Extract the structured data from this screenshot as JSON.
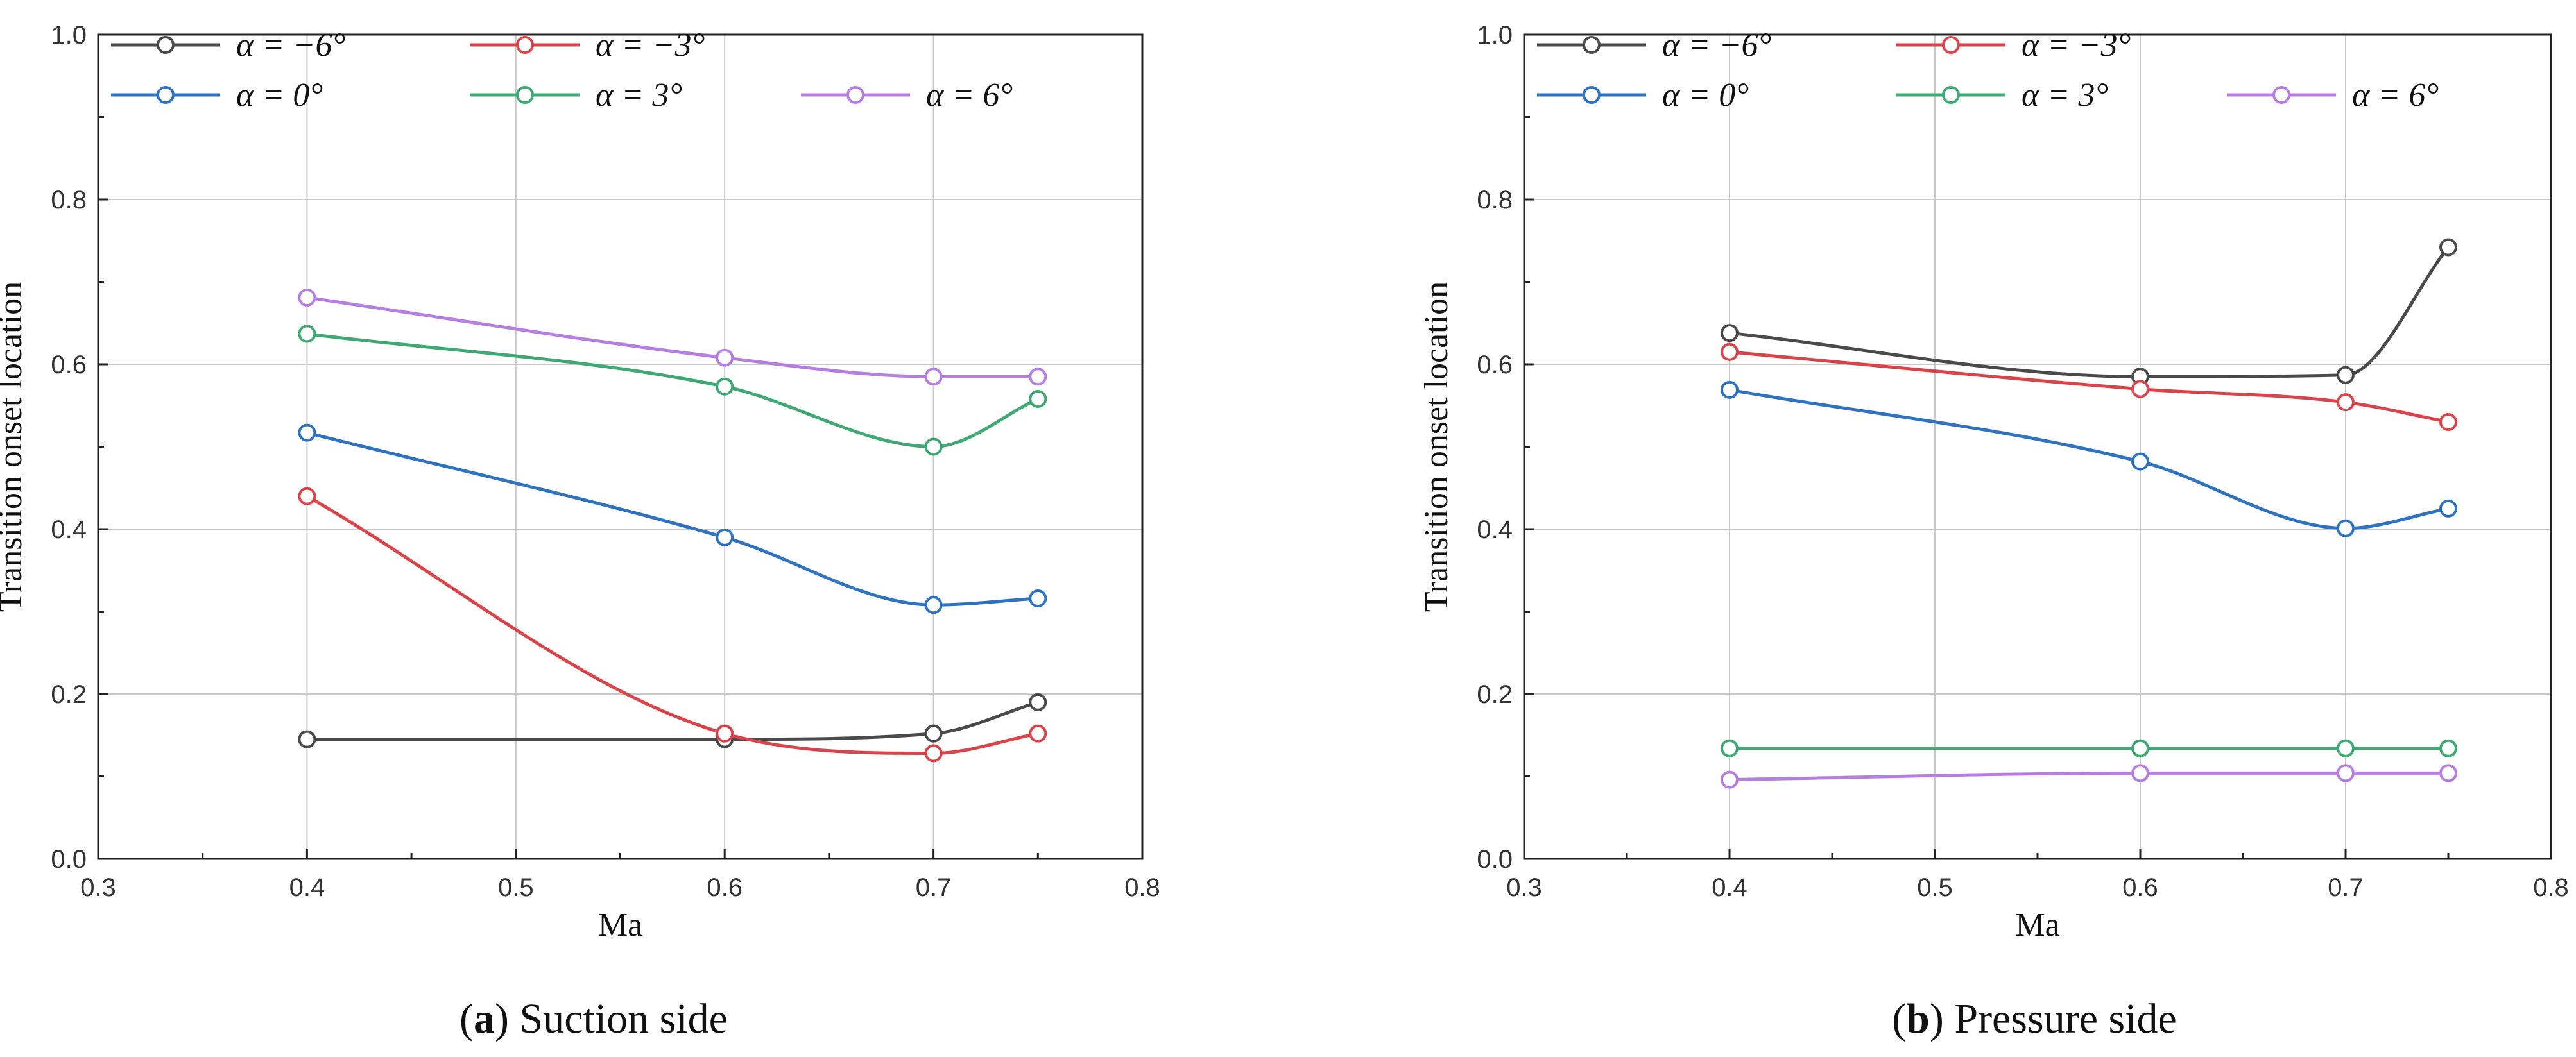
{
  "chart_data": [
    {
      "type": "line",
      "caption_prefix": "(",
      "caption_letter": "a",
      "caption_suffix": ") ",
      "caption_text": "Suction side",
      "xlabel": "Ma",
      "ylabel": "Transition onset location",
      "xlim": [
        0.3,
        0.8
      ],
      "ylim": [
        0.0,
        1.0
      ],
      "xticks": [
        "0.3",
        "0.4",
        "0.5",
        "0.6",
        "0.7",
        "0.8"
      ],
      "yticks": [
        "0.0",
        "0.2",
        "0.4",
        "0.6",
        "0.8",
        "1.0"
      ],
      "grid": true,
      "legend_position": "top, two rows",
      "x": [
        0.4,
        0.6,
        0.7,
        0.75
      ],
      "series": [
        {
          "name": "α = −6°",
          "color": "#4a4a4a",
          "values": [
            0.145,
            0.145,
            0.152,
            0.19
          ]
        },
        {
          "name": "α = −3°",
          "color": "#d9444b",
          "values": [
            0.44,
            0.152,
            0.128,
            0.152
          ]
        },
        {
          "name": "α = 0°",
          "color": "#2f73c0",
          "values": [
            0.517,
            0.39,
            0.308,
            0.316
          ]
        },
        {
          "name": "α = 3°",
          "color": "#3fa874",
          "values": [
            0.637,
            0.573,
            0.5,
            0.558
          ]
        },
        {
          "name": "α = 6°",
          "color": "#b57ee0",
          "values": [
            0.681,
            0.608,
            0.585,
            0.585
          ]
        }
      ]
    },
    {
      "type": "line",
      "caption_prefix": "(",
      "caption_letter": "b",
      "caption_suffix": ") ",
      "caption_text": "Pressure side",
      "xlabel": "Ma",
      "ylabel": "Transition onset location",
      "xlim": [
        0.3,
        0.8
      ],
      "ylim": [
        0.0,
        1.0
      ],
      "xticks": [
        "0.3",
        "0.4",
        "0.5",
        "0.6",
        "0.7",
        "0.8"
      ],
      "yticks": [
        "0.0",
        "0.2",
        "0.4",
        "0.6",
        "0.8",
        "1.0"
      ],
      "grid": true,
      "legend_position": "top, two rows",
      "x": [
        0.4,
        0.6,
        0.7,
        0.75
      ],
      "series": [
        {
          "name": "α = −6°",
          "color": "#4a4a4a",
          "values": [
            0.638,
            0.585,
            0.587,
            0.742
          ]
        },
        {
          "name": "α = −3°",
          "color": "#d9444b",
          "values": [
            0.615,
            0.57,
            0.554,
            0.53
          ]
        },
        {
          "name": "α = 0°",
          "color": "#2f73c0",
          "values": [
            0.569,
            0.482,
            0.401,
            0.425
          ]
        },
        {
          "name": "α = 3°",
          "color": "#3fa874",
          "values": [
            0.134,
            0.134,
            0.134,
            0.134
          ]
        },
        {
          "name": "α = 6°",
          "color": "#b57ee0",
          "values": [
            0.096,
            0.104,
            0.104,
            0.104
          ]
        }
      ]
    }
  ]
}
